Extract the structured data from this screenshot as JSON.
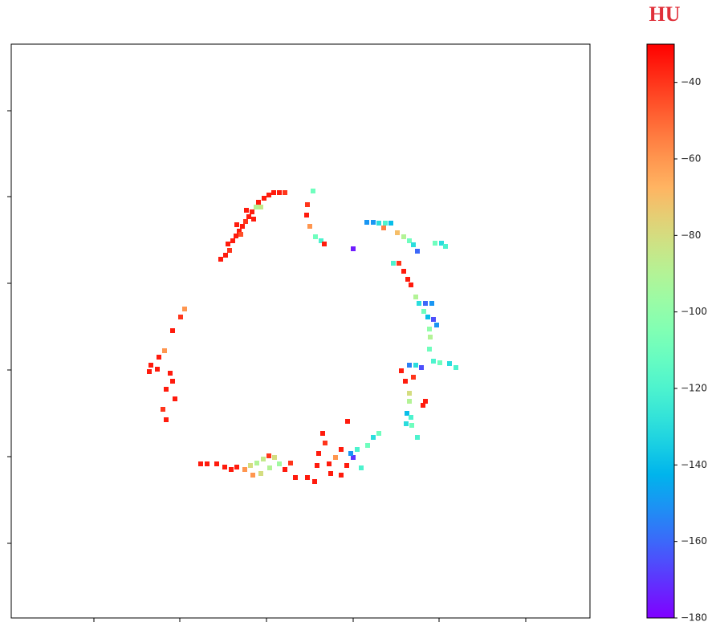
{
  "chart_data": {
    "type": "scatter",
    "colormap": "rainbow",
    "tick_labels": false,
    "xlim": [
      14,
      735
    ],
    "ylim": [
      770,
      55
    ],
    "xticks": [
      117,
      224,
      332,
      440,
      547,
      655
    ],
    "yticks": [
      138,
      245,
      353,
      461,
      569,
      677
    ],
    "x": [
      275,
      281,
      286,
      284,
      290,
      294,
      298,
      302,
      306,
      310,
      314,
      319,
      325,
      322,
      329,
      335,
      341,
      348,
      355,
      300,
      295,
      316,
      307,
      390,
      383,
      382,
      386,
      393,
      400,
      404,
      440,
      457,
      465,
      472,
      480,
      487,
      478,
      495,
      503,
      510,
      515,
      520,
      542,
      550,
      555,
      490,
      497,
      503,
      508,
      512,
      518,
      522,
      530,
      538,
      528,
      533,
      540,
      544,
      535,
      536,
      535,
      510,
      518,
      525,
      540,
      548,
      560,
      568,
      500,
      505,
      510,
      510,
      507,
      512,
      506,
      513,
      520,
      530,
      527,
      515,
      230,
      225,
      215,
      205,
      198,
      188,
      186,
      196,
      212,
      215,
      207,
      218,
      203,
      207,
      250,
      258,
      270,
      280,
      288,
      295,
      305,
      312,
      320,
      328,
      335,
      342,
      348,
      336,
      325,
      315,
      355,
      362,
      368,
      383,
      395,
      397,
      405,
      402,
      410,
      418,
      425,
      433,
      432,
      440,
      445,
      437,
      450,
      458,
      465,
      472,
      425,
      392,
      412
    ],
    "y": [
      323,
      318,
      312,
      304,
      300,
      294,
      288,
      282,
      276,
      270,
      264,
      258,
      258,
      252,
      247,
      243,
      240,
      240,
      240,
      292,
      280,
      273,
      262,
      238,
      255,
      268,
      282,
      295,
      300,
      304,
      310,
      277,
      277,
      278,
      278,
      278,
      284,
      290,
      295,
      300,
      305,
      313,
      303,
      303,
      307,
      328,
      328,
      338,
      348,
      355,
      370,
      378,
      378,
      378,
      388,
      395,
      398,
      405,
      410,
      420,
      435,
      455,
      455,
      458,
      450,
      452,
      453,
      458,
      462,
      475,
      490,
      500,
      515,
      520,
      528,
      530,
      545,
      500,
      505,
      470,
      385,
      395,
      412,
      437,
      445,
      455,
      463,
      460,
      465,
      475,
      485,
      497,
      510,
      523,
      578,
      578,
      578,
      582,
      585,
      582,
      585,
      580,
      577,
      572,
      568,
      570,
      578,
      583,
      590,
      592,
      585,
      577,
      595,
      595,
      580,
      565,
      552,
      540,
      578,
      570,
      592,
      525,
      580,
      570,
      560,
      565,
      583,
      555,
      545,
      540,
      560,
      600,
      590
    ],
    "values": [
      -35,
      -35,
      -40,
      -35,
      -35,
      -35,
      -35,
      -35,
      -40,
      -35,
      -35,
      -90,
      -85,
      -35,
      -35,
      -35,
      -35,
      -35,
      -40,
      -45,
      -35,
      -35,
      -35,
      -110,
      -40,
      -35,
      -60,
      -110,
      -120,
      -35,
      -175,
      -150,
      -150,
      -130,
      -120,
      -140,
      -55,
      -70,
      -90,
      -110,
      -130,
      -160,
      -110,
      -130,
      -120,
      -120,
      -40,
      -35,
      -35,
      -35,
      -90,
      -130,
      -160,
      -150,
      -110,
      -140,
      -165,
      -150,
      -100,
      -90,
      -110,
      -155,
      -130,
      -165,
      -120,
      -110,
      -130,
      -120,
      -35,
      -35,
      -80,
      -90,
      -140,
      -120,
      -130,
      -110,
      -120,
      -35,
      -35,
      -40,
      -60,
      -40,
      -35,
      -60,
      -35,
      -35,
      -35,
      -35,
      -35,
      -35,
      -35,
      -35,
      -40,
      -35,
      -35,
      -35,
      -35,
      -35,
      -35,
      -35,
      -60,
      -80,
      -90,
      -85,
      -40,
      -80,
      -95,
      -90,
      -80,
      -60,
      -35,
      -40,
      -35,
      -35,
      -35,
      -35,
      -40,
      -35,
      -35,
      -60,
      -35,
      -35,
      -35,
      -170,
      -120,
      -150,
      -120,
      -110,
      -130,
      -110,
      -35,
      -35,
      -35
    ],
    "colorbar": {
      "title": "HU",
      "clim": [
        -180,
        -30
      ],
      "ticks": [
        {
          "value": -40,
          "label": "−40"
        },
        {
          "value": -60,
          "label": "−60"
        },
        {
          "value": -80,
          "label": "−80"
        },
        {
          "value": -100,
          "label": "−100"
        },
        {
          "value": -120,
          "label": "−120"
        },
        {
          "value": -140,
          "label": "−140"
        },
        {
          "value": -160,
          "label": "−160"
        },
        {
          "value": -180,
          "label": "−180"
        }
      ]
    }
  }
}
